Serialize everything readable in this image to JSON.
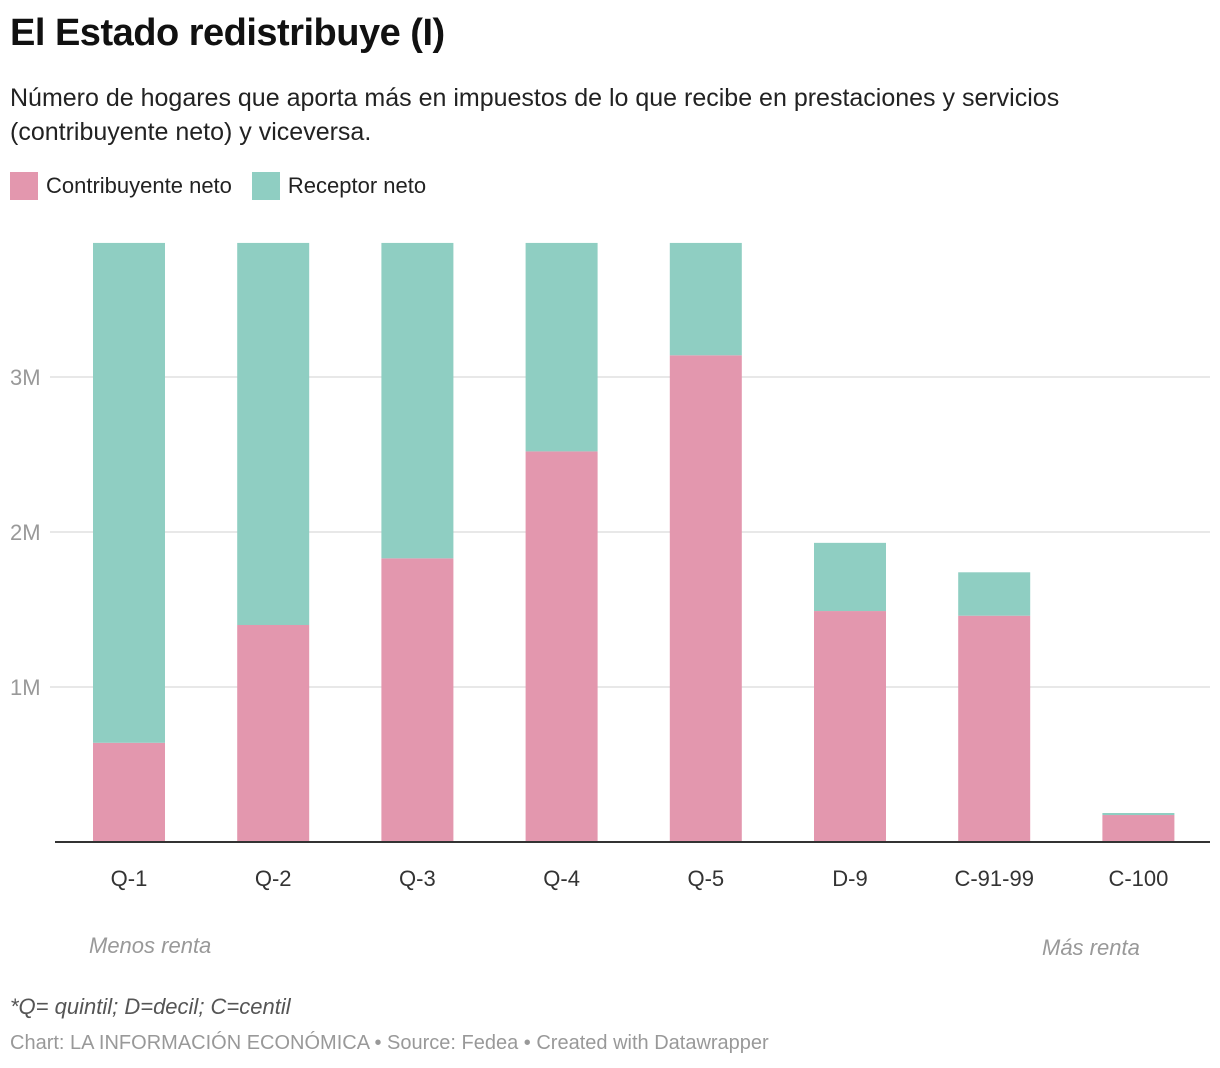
{
  "title": "El Estado redistribuye (I)",
  "subtitle": "Número de hogares que aporta más en impuestos de lo que recibe en prestaciones y servicios (contribuyente neto) y viceversa.",
  "annotations": {
    "left": "Menos renta",
    "right": "Más renta"
  },
  "footnote": "*Q= quintil; D=decil; C=centil",
  "credit": "Chart: LA INFORMACIÓN ECONÓMICA • Source: Fedea  • Created with Datawrapper",
  "colors": {
    "contribuyente": "#e397ae",
    "receptor": "#8fcec2"
  },
  "chart_data": {
    "type": "bar",
    "stacked": true,
    "categories": [
      "Q-1",
      "Q-2",
      "Q-3",
      "Q-4",
      "Q-5",
      "D-9",
      "C-91-99",
      "C-100"
    ],
    "series": [
      {
        "name": "Contribuyente neto",
        "values": [
          0.64,
          1.4,
          1.83,
          2.52,
          3.14,
          1.49,
          1.46,
          0.174
        ]
      },
      {
        "name": "Receptor neto",
        "values": [
          3.225,
          2.465,
          2.035,
          1.345,
          0.725,
          0.44,
          0.28,
          0.013
        ]
      }
    ],
    "unit": "M",
    "yticks": [
      {
        "value": 1,
        "label": "1M"
      },
      {
        "value": 2,
        "label": "2M"
      },
      {
        "value": 3,
        "label": "3M"
      }
    ],
    "ylim": [
      0,
      3.9
    ],
    "grid": true,
    "legend": "top-left"
  }
}
